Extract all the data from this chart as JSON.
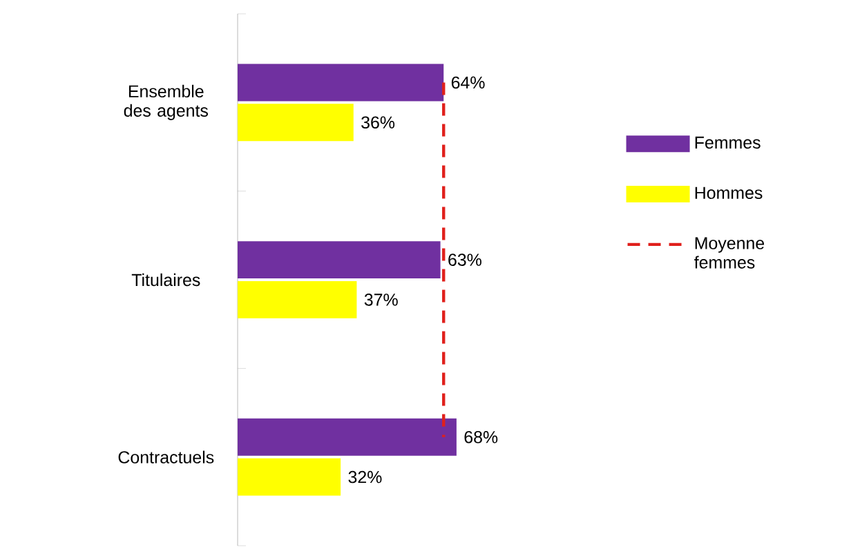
{
  "chart_data": {
    "type": "bar",
    "orientation": "horizontal",
    "categories": [
      "Ensemble des agents",
      "Titulaires",
      "Contractuels"
    ],
    "series": [
      {
        "name": "Femmes",
        "color": "#7030a0",
        "values": [
          64,
          63,
          68
        ],
        "value_labels": [
          "64%",
          "63%",
          "68%"
        ]
      },
      {
        "name": "Hommes",
        "color": "#ffff00",
        "values": [
          36,
          37,
          32
        ],
        "value_labels": [
          "36%",
          "37%",
          "32%"
        ]
      },
      {
        "name": "Moyenne femmes",
        "type": "line",
        "color": "#e0201c",
        "line_style": "dashed",
        "values": [
          64,
          64,
          64
        ]
      }
    ],
    "tick_labels": "y",
    "legend": "right"
  }
}
